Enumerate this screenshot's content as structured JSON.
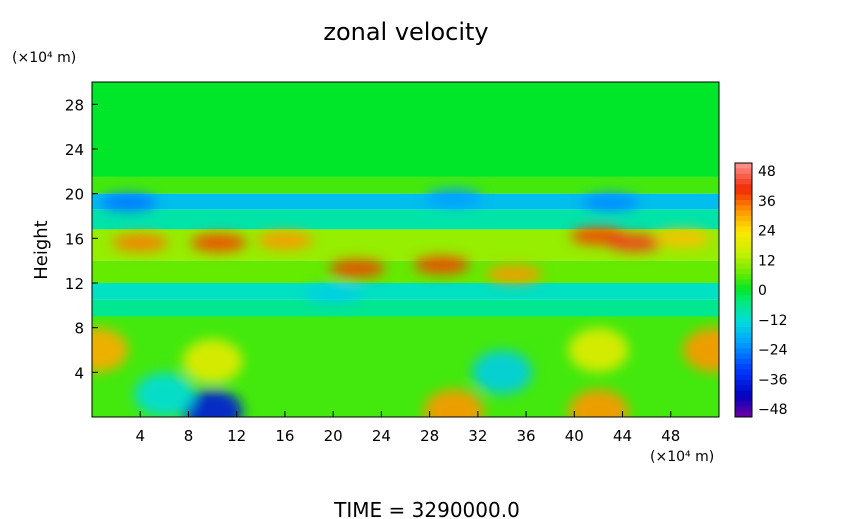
{
  "chart_data": {
    "type": "heatmap",
    "title": "zonal velocity",
    "ylabel": "Height",
    "y_unit_label": "(×10⁴ m)",
    "x_unit_label": "(×10⁴ m)",
    "footer": "TIME = 3290000.0",
    "xlim": [
      0,
      52
    ],
    "ylim": [
      0,
      30
    ],
    "x_ticks": [
      "4",
      "8",
      "12",
      "16",
      "20",
      "24",
      "28",
      "32",
      "36",
      "40",
      "44",
      "48"
    ],
    "y_ticks": [
      "4",
      "8",
      "12",
      "16",
      "20",
      "24",
      "28"
    ],
    "colorbar": {
      "min": -48,
      "max": 48,
      "tick_labels": [
        "48",
        "36",
        "24",
        "12",
        "0",
        "−12",
        "−24",
        "−36",
        "−48"
      ]
    },
    "features": [
      {
        "x": 4,
        "y": 15.6,
        "value": 32
      },
      {
        "x": 10.5,
        "y": 15.6,
        "value": 36
      },
      {
        "x": 16,
        "y": 15.8,
        "value": 30
      },
      {
        "x": 22,
        "y": 13.3,
        "value": 36
      },
      {
        "x": 29,
        "y": 13.6,
        "value": 36
      },
      {
        "x": 35,
        "y": 12.8,
        "value": 30
      },
      {
        "x": 42,
        "y": 16.2,
        "value": 36
      },
      {
        "x": 45,
        "y": 15.6,
        "value": 40
      },
      {
        "x": 49,
        "y": 16,
        "value": 26
      },
      {
        "x": 3,
        "y": 19.2,
        "value": -24
      },
      {
        "x": 30,
        "y": 19.6,
        "value": -20
      },
      {
        "x": 43,
        "y": 19.2,
        "value": -22
      },
      {
        "x": 20,
        "y": 11,
        "value": -14
      },
      {
        "x": 10,
        "y": 0.5,
        "value": -36
      },
      {
        "x": 42,
        "y": 0.5,
        "value": 30
      },
      {
        "x": 30,
        "y": 0.5,
        "value": 30
      },
      {
        "x": 0.5,
        "y": 6,
        "value": 28
      },
      {
        "x": 51.5,
        "y": 6,
        "value": 30
      },
      {
        "x": 10,
        "y": 5,
        "value": 18
      },
      {
        "x": 42,
        "y": 6,
        "value": 18
      },
      {
        "x": 34,
        "y": 4,
        "value": -14
      },
      {
        "x": 6,
        "y": 2,
        "value": -12
      }
    ]
  }
}
